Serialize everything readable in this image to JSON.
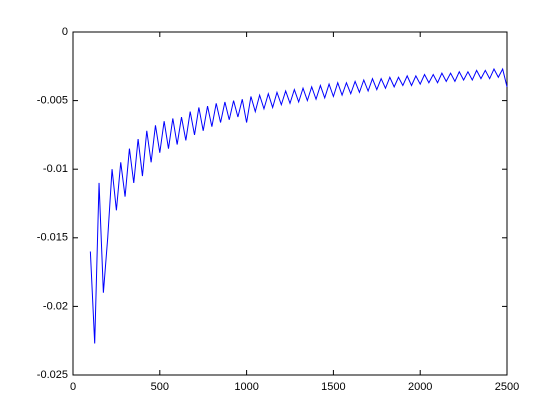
{
  "chart_data": {
    "type": "line",
    "x": [
      100,
      125,
      150,
      175,
      200,
      225,
      250,
      275,
      300,
      325,
      350,
      375,
      400,
      425,
      450,
      475,
      500,
      525,
      550,
      575,
      600,
      625,
      650,
      675,
      700,
      725,
      750,
      775,
      800,
      825,
      850,
      875,
      900,
      925,
      950,
      975,
      1000,
      1025,
      1050,
      1075,
      1100,
      1125,
      1150,
      1175,
      1200,
      1225,
      1250,
      1275,
      1300,
      1325,
      1350,
      1375,
      1400,
      1425,
      1450,
      1475,
      1500,
      1525,
      1550,
      1575,
      1600,
      1625,
      1650,
      1675,
      1700,
      1725,
      1750,
      1775,
      1800,
      1825,
      1850,
      1875,
      1900,
      1925,
      1950,
      1975,
      2000,
      2025,
      2050,
      2075,
      2100,
      2125,
      2150,
      2175,
      2200,
      2225,
      2250,
      2275,
      2300,
      2325,
      2350,
      2375,
      2400,
      2425,
      2450,
      2475,
      2500
    ],
    "series": [
      {
        "color": "#0000ff",
        "values": [
          -0.016,
          -0.0227,
          -0.011,
          -0.019,
          -0.015,
          -0.01,
          -0.013,
          -0.0095,
          -0.012,
          -0.0085,
          -0.011,
          -0.0078,
          -0.0105,
          -0.0072,
          -0.0095,
          -0.0068,
          -0.0088,
          -0.0065,
          -0.0085,
          -0.0063,
          -0.0082,
          -0.0062,
          -0.0079,
          -0.0058,
          -0.0075,
          -0.0055,
          -0.0072,
          -0.0054,
          -0.0069,
          -0.0052,
          -0.0066,
          -0.0051,
          -0.0064,
          -0.005,
          -0.0062,
          -0.0049,
          -0.0066,
          -0.0047,
          -0.0058,
          -0.0046,
          -0.0056,
          -0.0045,
          -0.0055,
          -0.0044,
          -0.0053,
          -0.0043,
          -0.0052,
          -0.0042,
          -0.0051,
          -0.0041,
          -0.005,
          -0.004,
          -0.0049,
          -0.0039,
          -0.0048,
          -0.0038,
          -0.0047,
          -0.0037,
          -0.0046,
          -0.0037,
          -0.0045,
          -0.0036,
          -0.0044,
          -0.0035,
          -0.0043,
          -0.0034,
          -0.0042,
          -0.0034,
          -0.0041,
          -0.0033,
          -0.004,
          -0.0033,
          -0.0039,
          -0.0032,
          -0.0039,
          -0.0032,
          -0.0038,
          -0.0031,
          -0.0037,
          -0.0031,
          -0.0037,
          -0.003,
          -0.0036,
          -0.003,
          -0.0036,
          -0.0029,
          -0.0035,
          -0.0029,
          -0.0035,
          -0.0028,
          -0.0034,
          -0.0028,
          -0.0034,
          -0.0027,
          -0.0033,
          -0.0027,
          -0.004
        ]
      }
    ],
    "xlim": [
      0,
      2500
    ],
    "xticks": [
      0,
      500,
      1000,
      1500,
      2000,
      2500
    ],
    "ylim": [
      -0.025,
      0
    ],
    "yticks": [
      -0.025,
      -0.02,
      -0.015,
      -0.01,
      -0.005,
      0
    ],
    "grid": false
  }
}
